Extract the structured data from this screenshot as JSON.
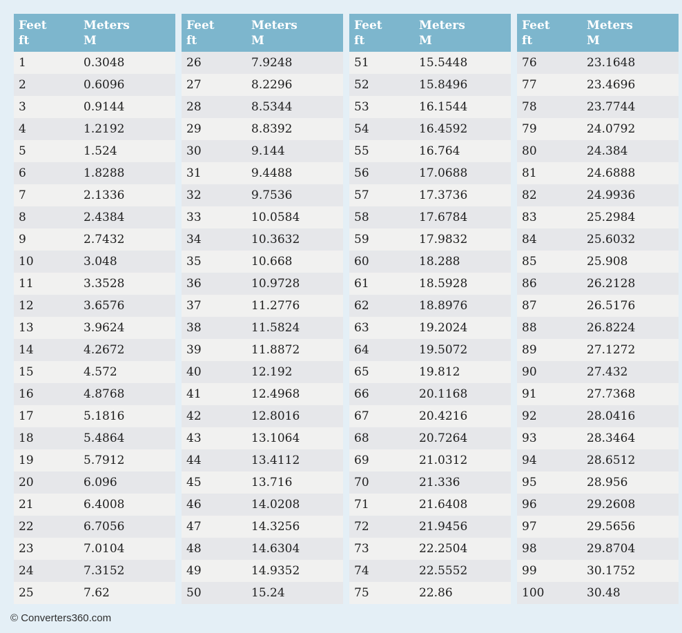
{
  "colors": {
    "page_bg": "#e4eff6",
    "header_bg": "#7db6cd",
    "header_text": "#ffffff",
    "row_odd_bg": "#f1f1f0",
    "row_even_bg": "#e6e7ea",
    "data_text": "#1d1d1d",
    "footer_text": "#2e2e2e"
  },
  "table": {
    "header": {
      "feet_label": "Feet",
      "feet_unit": "ft",
      "meters_label": "Meters",
      "meters_unit": "M"
    },
    "columns": [
      {
        "rows": [
          {
            "feet": "1",
            "meters": "0.3048"
          },
          {
            "feet": "2",
            "meters": "0.6096"
          },
          {
            "feet": "3",
            "meters": "0.9144"
          },
          {
            "feet": "4",
            "meters": "1.2192"
          },
          {
            "feet": "5",
            "meters": "1.524"
          },
          {
            "feet": "6",
            "meters": "1.8288"
          },
          {
            "feet": "7",
            "meters": "2.1336"
          },
          {
            "feet": "8",
            "meters": "2.4384"
          },
          {
            "feet": "9",
            "meters": "2.7432"
          },
          {
            "feet": "10",
            "meters": "3.048"
          },
          {
            "feet": "11",
            "meters": "3.3528"
          },
          {
            "feet": "12",
            "meters": "3.6576"
          },
          {
            "feet": "13",
            "meters": "3.9624"
          },
          {
            "feet": "14",
            "meters": "4.2672"
          },
          {
            "feet": "15",
            "meters": "4.572"
          },
          {
            "feet": "16",
            "meters": "4.8768"
          },
          {
            "feet": "17",
            "meters": "5.1816"
          },
          {
            "feet": "18",
            "meters": "5.4864"
          },
          {
            "feet": "19",
            "meters": "5.7912"
          },
          {
            "feet": "20",
            "meters": "6.096"
          },
          {
            "feet": "21",
            "meters": "6.4008"
          },
          {
            "feet": "22",
            "meters": "6.7056"
          },
          {
            "feet": "23",
            "meters": "7.0104"
          },
          {
            "feet": "24",
            "meters": "7.3152"
          },
          {
            "feet": "25",
            "meters": "7.62"
          }
        ]
      },
      {
        "rows": [
          {
            "feet": "26",
            "meters": "7.9248"
          },
          {
            "feet": "27",
            "meters": "8.2296"
          },
          {
            "feet": "28",
            "meters": "8.5344"
          },
          {
            "feet": "29",
            "meters": "8.8392"
          },
          {
            "feet": "30",
            "meters": "9.144"
          },
          {
            "feet": "31",
            "meters": "9.4488"
          },
          {
            "feet": "32",
            "meters": "9.7536"
          },
          {
            "feet": "33",
            "meters": "10.0584"
          },
          {
            "feet": "34",
            "meters": "10.3632"
          },
          {
            "feet": "35",
            "meters": "10.668"
          },
          {
            "feet": "36",
            "meters": "10.9728"
          },
          {
            "feet": "37",
            "meters": "11.2776"
          },
          {
            "feet": "38",
            "meters": "11.5824"
          },
          {
            "feet": "39",
            "meters": "11.8872"
          },
          {
            "feet": "40",
            "meters": "12.192"
          },
          {
            "feet": "41",
            "meters": "12.4968"
          },
          {
            "feet": "42",
            "meters": "12.8016"
          },
          {
            "feet": "43",
            "meters": "13.1064"
          },
          {
            "feet": "44",
            "meters": "13.4112"
          },
          {
            "feet": "45",
            "meters": "13.716"
          },
          {
            "feet": "46",
            "meters": "14.0208"
          },
          {
            "feet": "47",
            "meters": "14.3256"
          },
          {
            "feet": "48",
            "meters": "14.6304"
          },
          {
            "feet": "49",
            "meters": "14.9352"
          },
          {
            "feet": "50",
            "meters": "15.24"
          }
        ]
      },
      {
        "rows": [
          {
            "feet": "51",
            "meters": "15.5448"
          },
          {
            "feet": "52",
            "meters": "15.8496"
          },
          {
            "feet": "53",
            "meters": "16.1544"
          },
          {
            "feet": "54",
            "meters": "16.4592"
          },
          {
            "feet": "55",
            "meters": "16.764"
          },
          {
            "feet": "56",
            "meters": "17.0688"
          },
          {
            "feet": "57",
            "meters": "17.3736"
          },
          {
            "feet": "58",
            "meters": "17.6784"
          },
          {
            "feet": "59",
            "meters": "17.9832"
          },
          {
            "feet": "60",
            "meters": "18.288"
          },
          {
            "feet": "61",
            "meters": "18.5928"
          },
          {
            "feet": "62",
            "meters": "18.8976"
          },
          {
            "feet": "63",
            "meters": "19.2024"
          },
          {
            "feet": "64",
            "meters": "19.5072"
          },
          {
            "feet": "65",
            "meters": "19.812"
          },
          {
            "feet": "66",
            "meters": "20.1168"
          },
          {
            "feet": "67",
            "meters": "20.4216"
          },
          {
            "feet": "68",
            "meters": "20.7264"
          },
          {
            "feet": "69",
            "meters": "21.0312"
          },
          {
            "feet": "70",
            "meters": "21.336"
          },
          {
            "feet": "71",
            "meters": "21.6408"
          },
          {
            "feet": "72",
            "meters": "21.9456"
          },
          {
            "feet": "73",
            "meters": "22.2504"
          },
          {
            "feet": "74",
            "meters": "22.5552"
          },
          {
            "feet": "75",
            "meters": "22.86"
          }
        ]
      },
      {
        "rows": [
          {
            "feet": "76",
            "meters": "23.1648"
          },
          {
            "feet": "77",
            "meters": "23.4696"
          },
          {
            "feet": "78",
            "meters": "23.7744"
          },
          {
            "feet": "79",
            "meters": "24.0792"
          },
          {
            "feet": "80",
            "meters": "24.384"
          },
          {
            "feet": "81",
            "meters": "24.6888"
          },
          {
            "feet": "82",
            "meters": "24.9936"
          },
          {
            "feet": "83",
            "meters": "25.2984"
          },
          {
            "feet": "84",
            "meters": "25.6032"
          },
          {
            "feet": "85",
            "meters": "25.908"
          },
          {
            "feet": "86",
            "meters": "26.2128"
          },
          {
            "feet": "87",
            "meters": "26.5176"
          },
          {
            "feet": "88",
            "meters": "26.8224"
          },
          {
            "feet": "89",
            "meters": "27.1272"
          },
          {
            "feet": "90",
            "meters": "27.432"
          },
          {
            "feet": "91",
            "meters": "27.7368"
          },
          {
            "feet": "92",
            "meters": "28.0416"
          },
          {
            "feet": "93",
            "meters": "28.3464"
          },
          {
            "feet": "94",
            "meters": "28.6512"
          },
          {
            "feet": "95",
            "meters": "28.956"
          },
          {
            "feet": "96",
            "meters": "29.2608"
          },
          {
            "feet": "97",
            "meters": "29.5656"
          },
          {
            "feet": "98",
            "meters": "29.8704"
          },
          {
            "feet": "99",
            "meters": "30.1752"
          },
          {
            "feet": "100",
            "meters": "30.48"
          }
        ]
      }
    ]
  },
  "footer": {
    "text": "© Converters360.com"
  }
}
